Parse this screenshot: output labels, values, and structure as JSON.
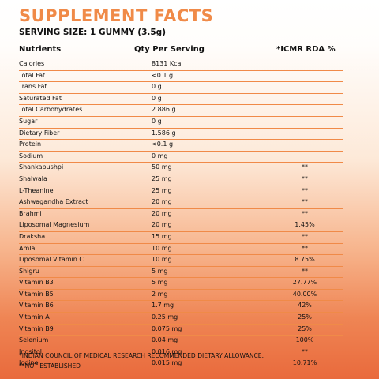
{
  "title": "SUPPLEMENT FACTS",
  "serving": "SERVING SIZE: 1 GUMMY (3.5g)",
  "headers": {
    "nutrients": "Nutrients",
    "qty": "Qty Per Serving",
    "rda": "*ICMR RDA %"
  },
  "rows": [
    {
      "name": "Calories",
      "qty": "8131 Kcal",
      "rda": ""
    },
    {
      "name": "Total Fat",
      "qty": "<0.1 g",
      "rda": ""
    },
    {
      "name": "Trans Fat",
      "qty": "0 g",
      "rda": ""
    },
    {
      "name": "Saturated Fat",
      "qty": "0 g",
      "rda": ""
    },
    {
      "name": "Total Carbohydrates",
      "qty": "2.886 g",
      "rda": ""
    },
    {
      "name": "Sugar",
      "qty": "0 g",
      "rda": ""
    },
    {
      "name": "Dietary Fiber",
      "qty": "1.586 g",
      "rda": ""
    },
    {
      "name": "Protein",
      "qty": "<0.1 g",
      "rda": ""
    },
    {
      "name": "Sodium",
      "qty": "0 mg",
      "rda": ""
    },
    {
      "name": "Shankapushpi",
      "qty": "50 mg",
      "rda": "**"
    },
    {
      "name": "Shalwala",
      "qty": "25 mg",
      "rda": "**"
    },
    {
      "name": "L-Theanine",
      "qty": "25 mg",
      "rda": "**"
    },
    {
      "name": "Ashwagandha Extract",
      "qty": "20 mg",
      "rda": "**"
    },
    {
      "name": "Brahmi",
      "qty": "20 mg",
      "rda": "**"
    },
    {
      "name": "Liposomal Magnesium",
      "qty": "20 mg",
      "rda": "1.45%"
    },
    {
      "name": "Draksha",
      "qty": "15 mg",
      "rda": "**"
    },
    {
      "name": "Amla",
      "qty": "10 mg",
      "rda": "**"
    },
    {
      "name": "Liposomal Vitamin C",
      "qty": "10 mg",
      "rda": "8.75%"
    },
    {
      "name": "Shigru",
      "qty": "5 mg",
      "rda": "**"
    },
    {
      "name": "Vitamin B3",
      "qty": "5 mg",
      "rda": "27.77%"
    },
    {
      "name": "Vitamin B5",
      "qty": "2 mg",
      "rda": "40.00%"
    },
    {
      "name": "Vitamin B6",
      "qty": "1.7 mg",
      "rda": "42%"
    },
    {
      "name": "Vitamin A",
      "qty": "0.25 mg",
      "rda": "25%"
    },
    {
      "name": "Vitamin B9",
      "qty": "0.075 mg",
      "rda": "25%"
    },
    {
      "name": "Selenium",
      "qty": "0.04 mg",
      "rda": "100%"
    },
    {
      "name": "Inositol",
      "qty": "0.016 mg",
      "rda": "**"
    },
    {
      "name": "Iodine",
      "qty": "0.015 mg",
      "rda": "10.71%"
    }
  ],
  "footnotes": [
    "*INDIAN COUNCIL OF MEDICAL RESEARCH RECOMMENDED DIETARY ALLOWANCE.",
    "**NOT ESTABLISHED"
  ],
  "colors": {
    "title": "#f08a48",
    "rule": "#f08a48",
    "bottom": "#e96a3c"
  }
}
